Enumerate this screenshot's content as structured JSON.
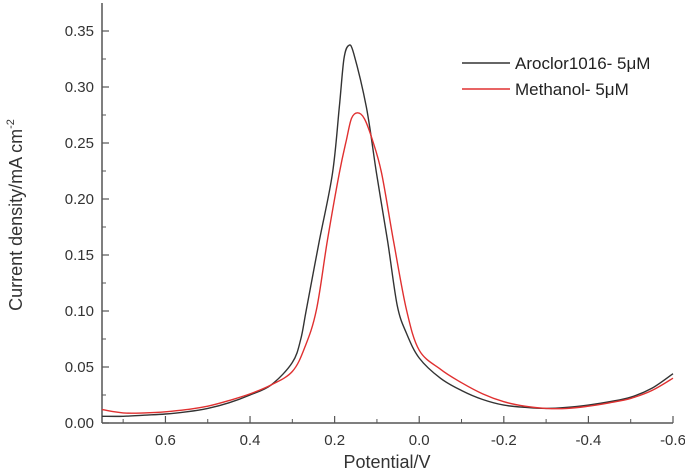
{
  "chart_data": {
    "type": "line",
    "title": "",
    "xlabel": "Potential/V",
    "ylabel": "Current density/mA cm",
    "ylabel_superscript": "-2",
    "xlim": [
      0.75,
      -0.6
    ],
    "ylim": [
      0,
      0.375
    ],
    "x_ticks": [
      0.6,
      0.4,
      0.2,
      0.0,
      -0.2,
      -0.4,
      -0.6
    ],
    "x_tick_labels": [
      "0.6",
      "0.4",
      "0.2",
      "0.0",
      "-0.2",
      "-0.4",
      "-0.6"
    ],
    "y_ticks": [
      0,
      0.05,
      0.1,
      0.15,
      0.2,
      0.25,
      0.3,
      0.35
    ],
    "y_tick_labels": [
      "0.00",
      "0.05",
      "0.10",
      "0.15",
      "0.20",
      "0.25",
      "0.30",
      "0.35"
    ],
    "grid": false,
    "legend_position": "top-right",
    "series": [
      {
        "name": "Aroclor1016- 5μM",
        "color": "#333333",
        "x": [
          0.75,
          0.7,
          0.65,
          0.6,
          0.55,
          0.5,
          0.45,
          0.4,
          0.35,
          0.3,
          0.28,
          0.267,
          0.236,
          0.205,
          0.189,
          0.178,
          0.167,
          0.155,
          0.125,
          0.101,
          0.075,
          0.052,
          0.03,
          0.0,
          -0.05,
          -0.1,
          -0.15,
          -0.2,
          -0.25,
          -0.3,
          -0.35,
          -0.4,
          -0.45,
          -0.5,
          -0.55,
          -0.6
        ],
        "y": [
          0.006,
          0.006,
          0.007,
          0.008,
          0.01,
          0.013,
          0.018,
          0.025,
          0.034,
          0.054,
          0.075,
          0.101,
          0.163,
          0.223,
          0.282,
          0.325,
          0.337,
          0.33,
          0.282,
          0.223,
          0.163,
          0.105,
          0.08,
          0.058,
          0.04,
          0.029,
          0.021,
          0.016,
          0.014,
          0.013,
          0.014,
          0.016,
          0.019,
          0.023,
          0.031,
          0.044
        ]
      },
      {
        "name": "Methanol- 5μM",
        "color": "#e03030",
        "x": [
          0.75,
          0.7,
          0.65,
          0.6,
          0.55,
          0.5,
          0.45,
          0.4,
          0.35,
          0.3,
          0.27,
          0.243,
          0.217,
          0.189,
          0.172,
          0.16,
          0.146,
          0.13,
          0.111,
          0.089,
          0.061,
          0.03,
          0.0,
          -0.05,
          -0.1,
          -0.15,
          -0.2,
          -0.25,
          -0.3,
          -0.35,
          -0.4,
          -0.45,
          -0.5,
          -0.55,
          -0.6
        ],
        "y": [
          0.012,
          0.009,
          0.009,
          0.01,
          0.012,
          0.015,
          0.02,
          0.026,
          0.034,
          0.046,
          0.068,
          0.101,
          0.163,
          0.223,
          0.253,
          0.272,
          0.277,
          0.272,
          0.253,
          0.223,
          0.163,
          0.101,
          0.065,
          0.048,
          0.036,
          0.026,
          0.019,
          0.015,
          0.013,
          0.013,
          0.015,
          0.018,
          0.022,
          0.029,
          0.04
        ]
      }
    ]
  }
}
